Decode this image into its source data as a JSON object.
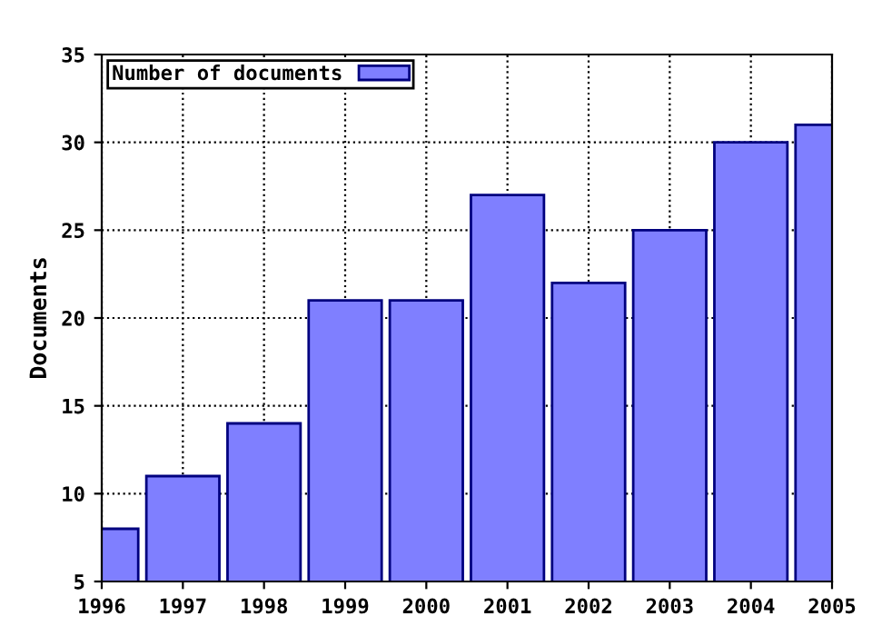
{
  "chart_data": {
    "type": "bar",
    "ylabel": "Documents",
    "x": [
      1996,
      1997,
      1998,
      1999,
      2000,
      2001,
      2002,
      2003,
      2004,
      2005
    ],
    "series": [
      {
        "name": "Number of documents",
        "color": "#7f7fff",
        "values": [
          8,
          11,
          14,
          21,
          21,
          27,
          22,
          25,
          30,
          31
        ]
      }
    ],
    "xlim": [
      1996,
      2005
    ],
    "xticks": [
      1996,
      1997,
      1998,
      1999,
      2000,
      2001,
      2002,
      2003,
      2004,
      2005
    ],
    "ylim": [
      5,
      35
    ],
    "yticks": [
      5,
      10,
      15,
      20,
      25,
      30,
      35
    ],
    "grid": true,
    "legend": "top left"
  }
}
